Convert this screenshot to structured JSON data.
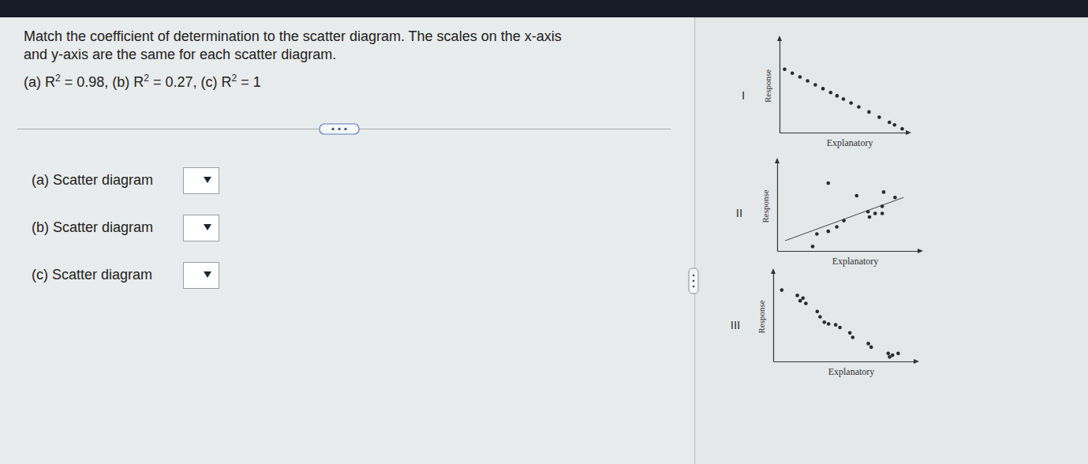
{
  "question": {
    "lines": [
      "Match the coefficient of determination to the scatter diagram. The scales on the x-axis",
      "and y-axis are the same for each scatter diagram."
    ],
    "equals": "=",
    "separator": ",",
    "options": [
      {
        "prefix": "(a) R",
        "exponent": "2",
        "value": 0.98
      },
      {
        "prefix": "(b) R",
        "exponent": "2",
        "value": 0.27
      },
      {
        "prefix": "(c) R",
        "exponent": "2",
        "value": 1
      }
    ]
  },
  "answers": [
    "(a) Scatter diagram",
    "(b) Scatter diagram",
    "(c) Scatter diagram"
  ],
  "chart_data": [
    {
      "type": "scatter",
      "title": "I",
      "x_label": "Explanatory",
      "y_label": "Response",
      "tick_labels": false,
      "xlim": [
        0,
        10
      ],
      "ylim": [
        0,
        10
      ],
      "x": [
        0.4,
        1.0,
        1.6,
        2.2,
        2.8,
        3.4,
        4.0,
        4.5,
        5.0,
        5.6,
        6.2,
        7.0,
        7.8,
        8.6,
        9.0,
        9.6
      ],
      "values": [
        6.8,
        6.38,
        5.97,
        5.55,
        5.13,
        4.71,
        4.3,
        3.95,
        3.6,
        3.18,
        2.76,
        2.21,
        1.65,
        1.1,
        0.82,
        0.4
      ]
    },
    {
      "type": "scatter",
      "title": "II",
      "x_label": "Explanatory",
      "y_label": "Response",
      "tick_labels": false,
      "xlim": [
        0,
        10
      ],
      "ylim": [
        0,
        10
      ],
      "x": [
        3.6,
        5.6,
        7.5,
        8.3,
        6.4,
        6.5,
        6.9,
        7.4,
        7.4,
        4.7,
        4.2,
        3.6,
        2.8,
        2.5
      ],
      "values": [
        7.6,
        6.2,
        6.6,
        6.0,
        4.4,
        3.8,
        4.2,
        5.0,
        4.2,
        3.4,
        2.7,
        2.2,
        1.9,
        0.5
      ],
      "trend_line": {
        "x": [
          0.56,
          8.9
        ],
        "values": [
          1.15,
          6.0
        ]
      }
    },
    {
      "type": "scatter",
      "title": "III",
      "x_label": "Explanatory",
      "y_label": "Response",
      "tick_labels": false,
      "xlim": [
        0,
        10
      ],
      "ylim": [
        0,
        10
      ],
      "x": [
        0.6,
        1.7,
        2.1,
        2.3,
        1.9,
        3.1,
        3.3,
        3.6,
        3.9,
        4.4,
        4.7,
        5.4,
        5.6,
        6.7,
        6.9,
        8.1,
        8.4,
        8.2,
        8.8
      ],
      "values": [
        8.0,
        7.4,
        7.1,
        6.5,
        6.8,
        5.6,
        5.0,
        4.4,
        4.2,
        4.1,
        3.8,
        3.2,
        2.7,
        2.0,
        1.6,
        0.9,
        0.7,
        0.5,
        0.9
      ]
    }
  ]
}
